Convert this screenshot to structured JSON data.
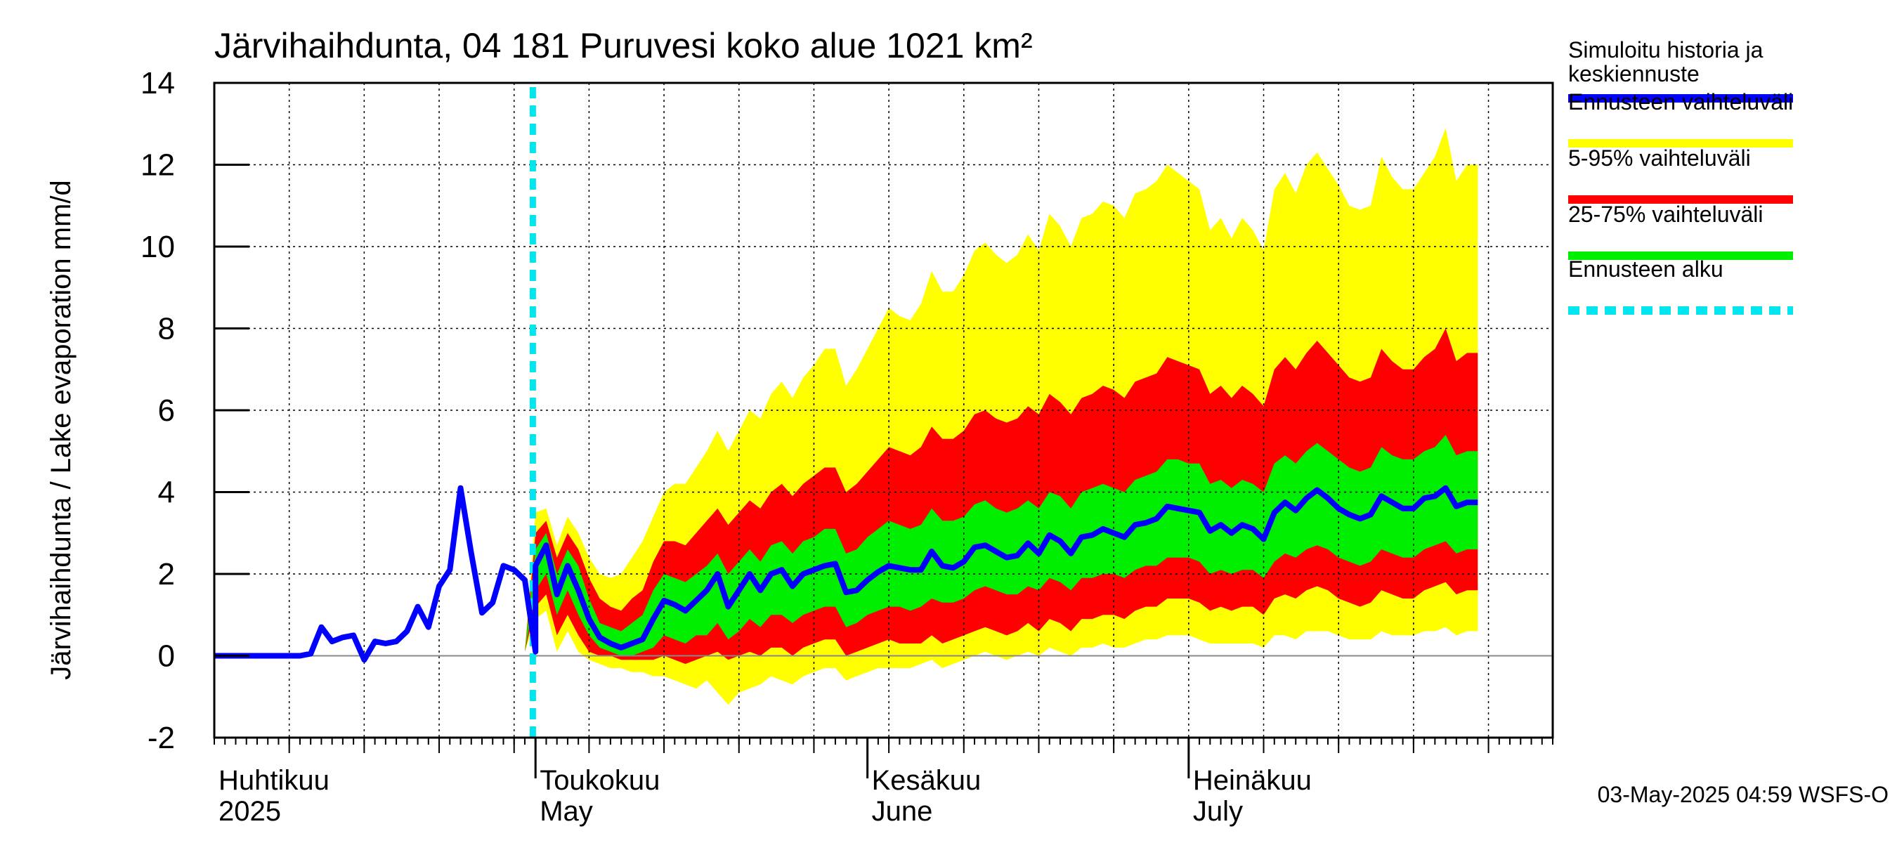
{
  "chart_data": {
    "type": "area",
    "title": "Järvihaihdunta, 04 181 Puruvesi koko alue 1021 km²",
    "ylabel": "Järvihaihdunta / Lake evaporation   mm/d",
    "ylim": [
      -2,
      14
    ],
    "yticks": [
      -2,
      0,
      2,
      4,
      6,
      8,
      10,
      12,
      14
    ],
    "x_start": "2025-04-01",
    "forecast_start": "2025-04-30",
    "months": [
      {
        "fi": "Huhtikuu",
        "en": "2025",
        "start": "2025-04-01"
      },
      {
        "fi": "Toukokuu",
        "en": "May",
        "start": "2025-05-01"
      },
      {
        "fi": "Kesäkuu",
        "en": "June",
        "start": "2025-06-01"
      },
      {
        "fi": "Heinäkuu",
        "en": "July",
        "start": "2025-07-01"
      }
    ],
    "x_end": "2025-08-04",
    "history": {
      "x_start": "2025-04-01",
      "values": [
        0,
        0,
        0,
        0,
        0,
        0,
        0,
        0,
        0,
        0.05,
        0.7,
        0.35,
        0.45,
        0.5,
        -0.1,
        0.35,
        0.3,
        0.35,
        0.6,
        1.2,
        0.7,
        1.7,
        2.1,
        4.1,
        2.5,
        1.05,
        1.3,
        2.2,
        2.1,
        1.85,
        0.1
      ]
    },
    "forecast": {
      "x_start": "2025-04-30",
      "median": [
        0.1,
        2.2,
        2.7,
        1.5,
        2.2,
        1.6,
        0.9,
        0.45,
        0.3,
        0.2,
        0.3,
        0.4,
        0.9,
        1.35,
        1.25,
        1.1,
        1.35,
        1.6,
        2.0,
        1.2,
        1.6,
        2.0,
        1.6,
        2.0,
        2.1,
        1.7,
        2.0,
        2.1,
        2.2,
        2.25,
        1.55,
        1.6,
        1.85,
        2.05,
        2.2,
        2.15,
        2.1,
        2.1,
        2.55,
        2.2,
        2.15,
        2.3,
        2.65,
        2.7,
        2.55,
        2.4,
        2.45,
        2.75,
        2.5,
        2.95,
        2.8,
        2.5,
        2.9,
        2.95,
        3.1,
        3.0,
        2.9,
        3.2,
        3.25,
        3.35,
        3.65,
        3.6,
        3.55,
        3.5,
        3.05,
        3.2,
        3.0,
        3.2,
        3.1,
        2.85,
        3.5,
        3.75,
        3.55,
        3.85,
        4.05,
        3.85,
        3.6,
        3.45,
        3.35,
        3.45,
        3.9,
        3.75,
        3.6,
        3.6,
        3.85,
        3.9,
        4.1,
        3.65,
        3.75,
        3.75
      ],
      "p25": [
        0.1,
        1.6,
        2.0,
        1.0,
        1.6,
        1.0,
        0.5,
        0.2,
        0.1,
        0.0,
        0.0,
        0.1,
        0.2,
        0.5,
        0.4,
        0.3,
        0.5,
        0.5,
        0.8,
        0.4,
        0.6,
        0.9,
        0.7,
        1.0,
        1.0,
        0.8,
        1.0,
        1.1,
        1.2,
        1.2,
        0.7,
        0.8,
        1.0,
        1.1,
        1.2,
        1.2,
        1.1,
        1.2,
        1.4,
        1.3,
        1.3,
        1.4,
        1.6,
        1.7,
        1.6,
        1.5,
        1.5,
        1.7,
        1.6,
        1.9,
        1.8,
        1.6,
        1.9,
        1.9,
        2.0,
        2.0,
        1.9,
        2.1,
        2.2,
        2.2,
        2.4,
        2.4,
        2.4,
        2.3,
        2.0,
        2.1,
        2.0,
        2.1,
        2.1,
        1.9,
        2.3,
        2.5,
        2.4,
        2.6,
        2.7,
        2.6,
        2.4,
        2.3,
        2.2,
        2.3,
        2.6,
        2.5,
        2.4,
        2.4,
        2.6,
        2.7,
        2.8,
        2.5,
        2.6,
        2.6
      ],
      "p75": [
        0.1,
        2.6,
        3.0,
        2.0,
        2.6,
        2.2,
        1.4,
        0.8,
        0.7,
        0.6,
        0.8,
        1.0,
        1.6,
        2.0,
        1.9,
        1.8,
        2.0,
        2.2,
        2.5,
        2.0,
        2.3,
        2.6,
        2.3,
        2.7,
        2.8,
        2.5,
        2.8,
        2.9,
        3.1,
        3.1,
        2.5,
        2.6,
        2.9,
        3.1,
        3.3,
        3.2,
        3.1,
        3.2,
        3.6,
        3.3,
        3.3,
        3.4,
        3.7,
        3.8,
        3.6,
        3.5,
        3.6,
        3.8,
        3.6,
        4.0,
        3.9,
        3.6,
        4.0,
        4.1,
        4.2,
        4.1,
        4.0,
        4.3,
        4.4,
        4.5,
        4.8,
        4.8,
        4.7,
        4.7,
        4.2,
        4.3,
        4.1,
        4.3,
        4.2,
        4.0,
        4.7,
        4.9,
        4.7,
        5.0,
        5.2,
        5.0,
        4.8,
        4.6,
        4.5,
        4.6,
        5.1,
        4.9,
        4.8,
        4.8,
        5.0,
        5.1,
        5.4,
        4.9,
        5.0,
        5.0
      ],
      "p05": [
        0.1,
        1.2,
        1.5,
        0.5,
        1.0,
        0.5,
        0.1,
        0.0,
        0.0,
        -0.1,
        -0.1,
        -0.1,
        -0.1,
        0.0,
        -0.1,
        -0.2,
        -0.1,
        0.0,
        0.1,
        -0.1,
        0.0,
        0.1,
        0.0,
        0.2,
        0.2,
        0.0,
        0.2,
        0.3,
        0.4,
        0.4,
        0.0,
        0.1,
        0.2,
        0.3,
        0.4,
        0.3,
        0.3,
        0.3,
        0.5,
        0.3,
        0.4,
        0.5,
        0.6,
        0.7,
        0.6,
        0.5,
        0.6,
        0.8,
        0.6,
        0.9,
        0.8,
        0.6,
        0.9,
        0.9,
        1.0,
        1.0,
        0.9,
        1.1,
        1.2,
        1.2,
        1.4,
        1.4,
        1.4,
        1.3,
        1.1,
        1.2,
        1.1,
        1.2,
        1.2,
        1.0,
        1.4,
        1.5,
        1.4,
        1.6,
        1.7,
        1.6,
        1.4,
        1.3,
        1.2,
        1.3,
        1.6,
        1.5,
        1.4,
        1.4,
        1.6,
        1.7,
        1.8,
        1.5,
        1.6,
        1.6
      ],
      "p95": [
        0.1,
        3.0,
        3.3,
        2.4,
        3.0,
        2.6,
        1.9,
        1.4,
        1.2,
        1.1,
        1.4,
        1.6,
        2.3,
        2.8,
        2.8,
        2.7,
        3.0,
        3.3,
        3.6,
        3.2,
        3.5,
        3.8,
        3.6,
        4.0,
        4.2,
        3.9,
        4.2,
        4.4,
        4.6,
        4.6,
        4.0,
        4.2,
        4.5,
        4.8,
        5.1,
        5.0,
        4.9,
        5.1,
        5.6,
        5.3,
        5.3,
        5.5,
        5.9,
        6.0,
        5.8,
        5.7,
        5.8,
        6.1,
        5.9,
        6.4,
        6.2,
        5.9,
        6.3,
        6.4,
        6.6,
        6.5,
        6.3,
        6.7,
        6.8,
        6.9,
        7.3,
        7.2,
        7.1,
        7.0,
        6.4,
        6.6,
        6.3,
        6.6,
        6.4,
        6.1,
        7.0,
        7.3,
        7.0,
        7.4,
        7.7,
        7.4,
        7.1,
        6.8,
        6.7,
        6.8,
        7.5,
        7.2,
        7.0,
        7.0,
        7.3,
        7.5,
        8.0,
        7.2,
        7.4,
        7.4
      ],
      "min": [
        0.1,
        0.9,
        1.1,
        0.1,
        0.6,
        0.1,
        -0.1,
        -0.2,
        -0.3,
        -0.3,
        -0.4,
        -0.4,
        -0.5,
        -0.5,
        -0.6,
        -0.7,
        -0.8,
        -0.6,
        -0.9,
        -1.2,
        -0.9,
        -0.8,
        -0.7,
        -0.5,
        -0.6,
        -0.7,
        -0.5,
        -0.4,
        -0.3,
        -0.3,
        -0.6,
        -0.5,
        -0.4,
        -0.3,
        -0.3,
        -0.3,
        -0.3,
        -0.2,
        -0.1,
        -0.3,
        -0.2,
        -0.1,
        0.0,
        0.1,
        0.0,
        -0.1,
        0.0,
        0.1,
        0.0,
        0.2,
        0.1,
        0.0,
        0.2,
        0.2,
        0.3,
        0.2,
        0.2,
        0.3,
        0.4,
        0.4,
        0.5,
        0.5,
        0.5,
        0.4,
        0.3,
        0.3,
        0.3,
        0.3,
        0.3,
        0.2,
        0.5,
        0.5,
        0.4,
        0.6,
        0.6,
        0.6,
        0.5,
        0.4,
        0.4,
        0.4,
        0.6,
        0.5,
        0.5,
        0.5,
        0.6,
        0.6,
        0.7,
        0.5,
        0.6,
        0.6
      ],
      "max": [
        0.1,
        3.5,
        3.6,
        2.7,
        3.4,
        3.0,
        2.4,
        2.0,
        1.9,
        2.0,
        2.4,
        2.8,
        3.4,
        4.0,
        4.2,
        4.2,
        4.6,
        5.0,
        5.5,
        5.0,
        5.5,
        6.0,
        5.8,
        6.4,
        6.7,
        6.3,
        6.8,
        7.1,
        7.5,
        7.5,
        6.6,
        7.0,
        7.5,
        8.0,
        8.5,
        8.3,
        8.2,
        8.6,
        9.4,
        8.9,
        8.9,
        9.3,
        9.9,
        10.1,
        9.8,
        9.6,
        9.8,
        10.3,
        9.9,
        10.8,
        10.5,
        10.0,
        10.7,
        10.8,
        11.1,
        11.0,
        10.7,
        11.3,
        11.4,
        11.6,
        12.0,
        11.8,
        11.6,
        11.4,
        10.4,
        10.7,
        10.2,
        10.7,
        10.4,
        9.9,
        11.4,
        11.8,
        11.3,
        12.0,
        12.3,
        11.9,
        11.5,
        11.0,
        10.9,
        11.0,
        12.2,
        11.7,
        11.4,
        11.4,
        11.8,
        12.2,
        12.9,
        11.6,
        12.0,
        12.0
      ]
    },
    "legend": [
      {
        "label": "Simuloitu historia ja keskiennuste",
        "color": "#0000ff",
        "style": "solid"
      },
      {
        "label": "Ennusteen vaihteluväli",
        "color": "#ffff00",
        "style": "solid"
      },
      {
        "label": "5-95% vaihteluväli",
        "color": "#ff0000",
        "style": "solid"
      },
      {
        "label": "25-75% vaihteluväli",
        "color": "#00ee00",
        "style": "solid"
      },
      {
        "label": "Ennusteen alku",
        "color": "#00e5ee",
        "style": "dashed"
      }
    ],
    "legend_position": "right",
    "grid": true
  },
  "footer": "03-May-2025 04:59 WSFS-O"
}
